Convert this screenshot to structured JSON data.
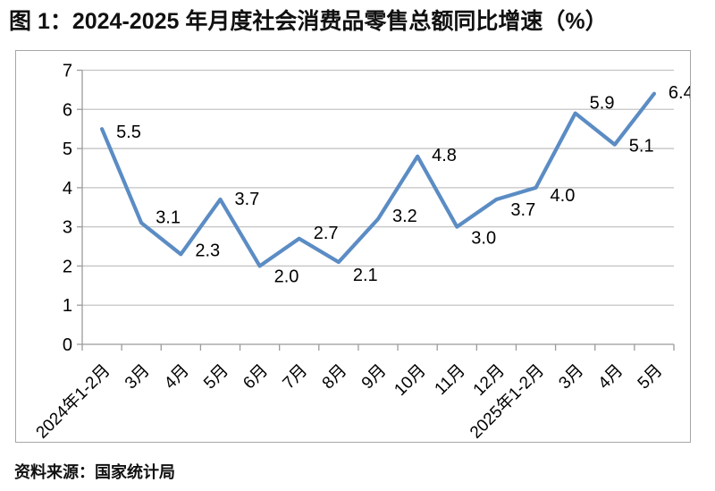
{
  "figure": {
    "title": "图 1：2024-2025 年月度社会消费品零售总额同比增速（%）",
    "source": "资料来源：国家统计局"
  },
  "chart_data": {
    "type": "line",
    "title": "图 1：2024-2025 年月度社会消费品零售总额同比增速（%）",
    "categories": [
      "2024年1-2月",
      "3月",
      "4月",
      "5月",
      "6月",
      "7月",
      "8月",
      "9月",
      "10月",
      "11月",
      "12月",
      "2025年1-2月",
      "3月",
      "4月",
      "5月"
    ],
    "values": [
      5.5,
      3.1,
      2.3,
      3.7,
      2.0,
      2.7,
      2.1,
      3.2,
      4.8,
      3.0,
      3.7,
      4.0,
      5.9,
      5.1,
      6.4
    ],
    "data_labels": [
      "5.5",
      "3.1",
      "2.3",
      "3.7",
      "2.0",
      "2.7",
      "2.1",
      "3.2",
      "4.8",
      "3.0",
      "3.7",
      "4.0",
      "5.9",
      "5.1",
      "6.4"
    ],
    "xlabel": "",
    "ylabel": "",
    "ylim": [
      0,
      7
    ],
    "yticks": [
      0,
      1,
      2,
      3,
      4,
      5,
      6,
      7
    ],
    "grid": "horizontal",
    "legend": "none",
    "x_label_rotation_deg": -45,
    "colors": {
      "line": "#5b8cc4",
      "gridline": "#c4c4c4",
      "axis": "#9b9b9b",
      "text": "#000000",
      "chart_border": "#a6a6a6"
    }
  }
}
